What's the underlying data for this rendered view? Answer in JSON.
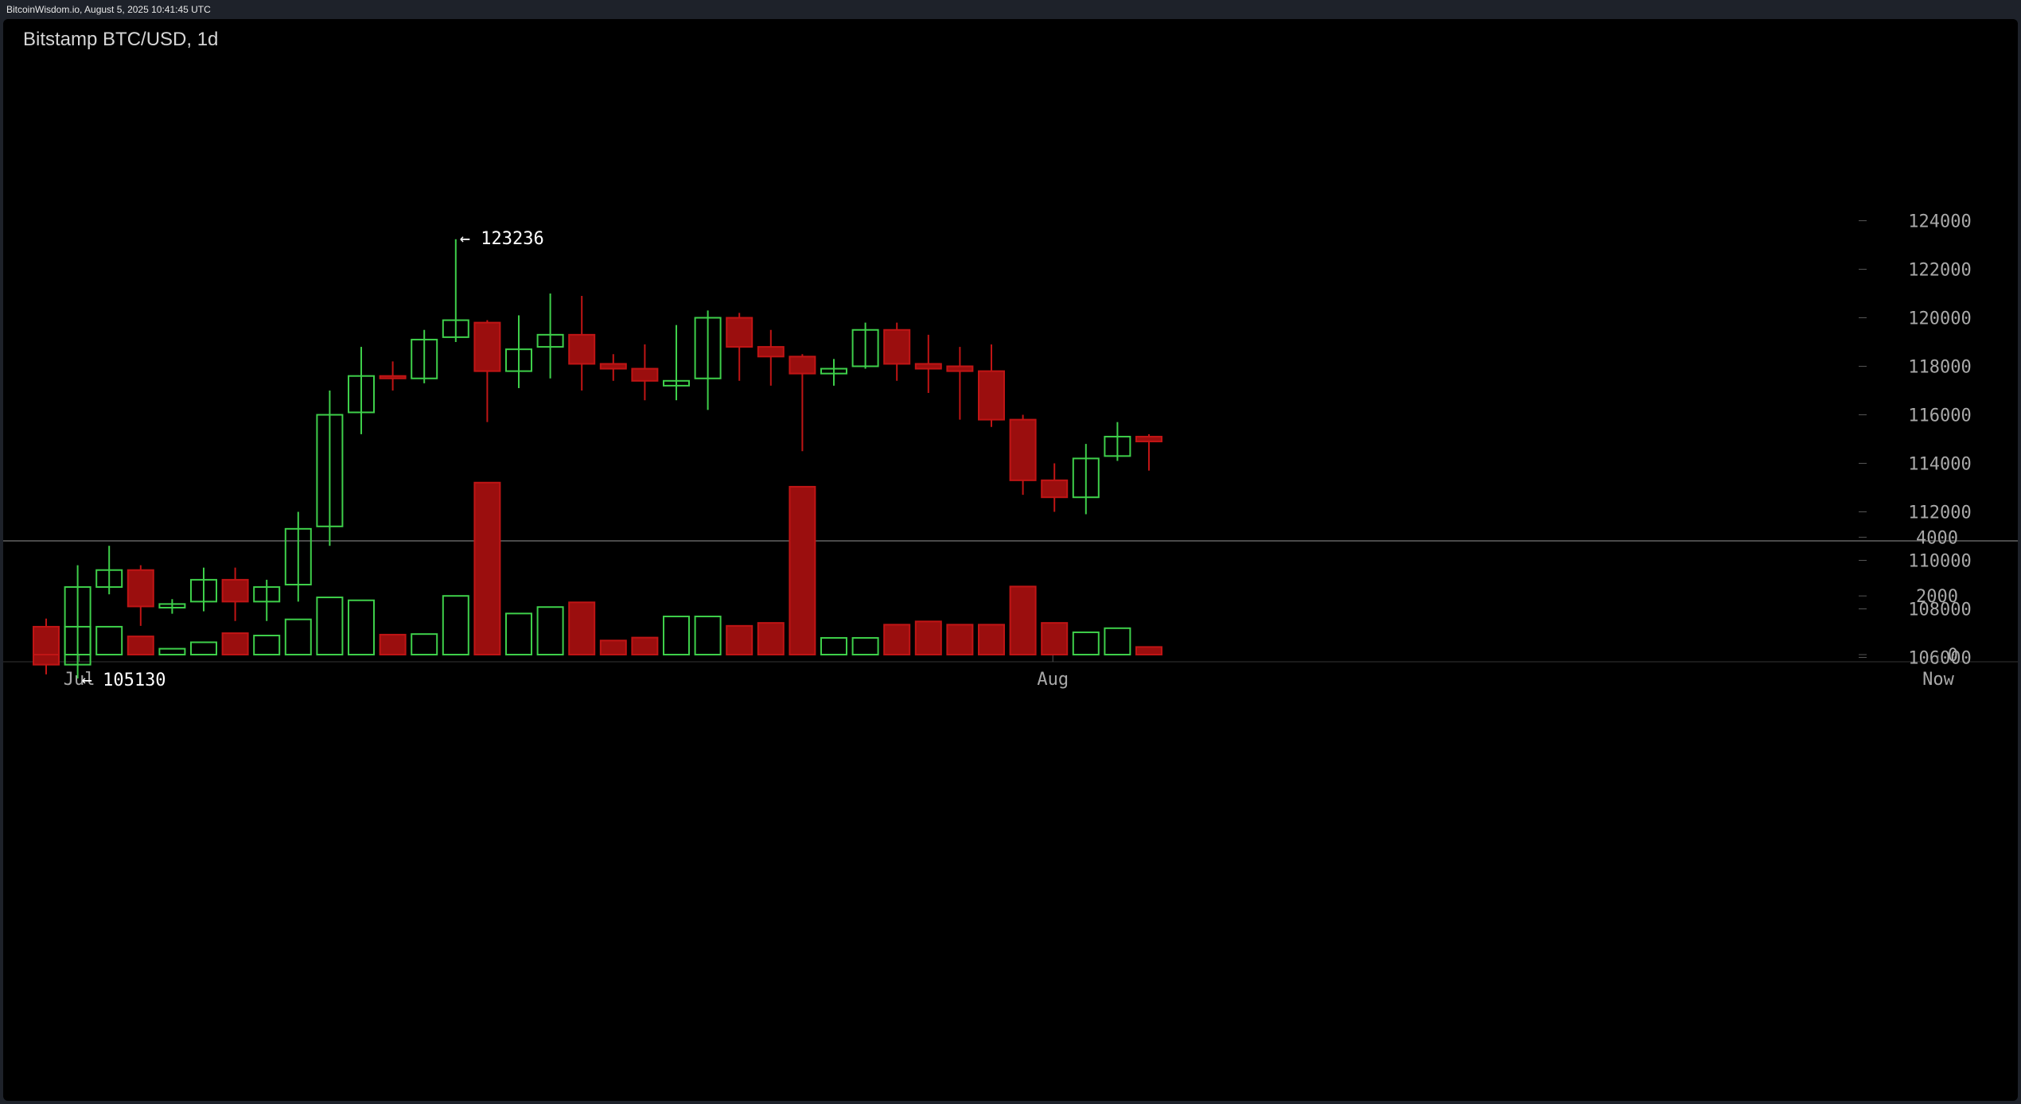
{
  "header": {
    "source": "BitcoinWisdom.io, August 5, 2025 10:41:45 UTC"
  },
  "chart_title": "Bitstamp BTC/USD, 1d",
  "colors": {
    "up": "#3ecf4a",
    "down": "#9b0e0e",
    "down_border": "#c01515",
    "background": "#000000",
    "axis_text": "#a8a8a8"
  },
  "chart_data": {
    "type": "candlestick",
    "title": "Bitstamp BTC/USD, 1d",
    "interval": "1d",
    "x_labels": [
      "Jul",
      "Aug",
      "Now"
    ],
    "price_axis": {
      "ticks": [
        106000,
        108000,
        110000,
        112000,
        114000,
        116000,
        118000,
        120000,
        122000,
        124000
      ],
      "range": [
        103600,
        125000
      ]
    },
    "volume_axis": {
      "ticks": [
        0,
        2000,
        4000
      ],
      "range": [
        0,
        5860
      ]
    },
    "annotations": [
      {
        "label": "← 123236",
        "value": 123236,
        "candle_index": 13,
        "anchor": "high"
      },
      {
        "label": "← 105130",
        "value": 105130,
        "candle_index": 1,
        "anchor": "low"
      }
    ],
    "candles": [
      {
        "o": 107200,
        "h": 107600,
        "l": 105300,
        "c": 105700,
        "v": 950
      },
      {
        "o": 105700,
        "h": 109800,
        "l": 105130,
        "c": 108900,
        "v": 950
      },
      {
        "o": 108900,
        "h": 110600,
        "l": 108600,
        "c": 109600,
        "v": 950
      },
      {
        "o": 109600,
        "h": 109800,
        "l": 107300,
        "c": 108100,
        "v": 620
      },
      {
        "o": 108050,
        "h": 108400,
        "l": 107800,
        "c": 108200,
        "v": 200
      },
      {
        "o": 108300,
        "h": 109700,
        "l": 107900,
        "c": 109200,
        "v": 420
      },
      {
        "o": 109200,
        "h": 109700,
        "l": 107500,
        "c": 108300,
        "v": 730
      },
      {
        "o": 108300,
        "h": 109200,
        "l": 107500,
        "c": 108900,
        "v": 650
      },
      {
        "o": 109000,
        "h": 112000,
        "l": 108300,
        "c": 111300,
        "v": 1200
      },
      {
        "o": 111400,
        "h": 117000,
        "l": 110600,
        "c": 116000,
        "v": 1950
      },
      {
        "o": 116100,
        "h": 118800,
        "l": 115200,
        "c": 117600,
        "v": 1850
      },
      {
        "o": 117600,
        "h": 118200,
        "l": 117000,
        "c": 117500,
        "v": 680
      },
      {
        "o": 117500,
        "h": 119500,
        "l": 117300,
        "c": 119100,
        "v": 700
      },
      {
        "o": 119200,
        "h": 123236,
        "l": 119000,
        "c": 119900,
        "v": 2000
      },
      {
        "o": 119800,
        "h": 119900,
        "l": 115700,
        "c": 117800,
        "v": 5860
      },
      {
        "o": 117800,
        "h": 120100,
        "l": 117100,
        "c": 118700,
        "v": 1400
      },
      {
        "o": 118800,
        "h": 121000,
        "l": 117500,
        "c": 119300,
        "v": 1620
      },
      {
        "o": 119300,
        "h": 120900,
        "l": 117000,
        "c": 118100,
        "v": 1780
      },
      {
        "o": 118100,
        "h": 118500,
        "l": 117400,
        "c": 117900,
        "v": 480
      },
      {
        "o": 117900,
        "h": 118900,
        "l": 116600,
        "c": 117400,
        "v": 580
      },
      {
        "o": 117200,
        "h": 119700,
        "l": 116600,
        "c": 117400,
        "v": 1300
      },
      {
        "o": 117500,
        "h": 120300,
        "l": 116200,
        "c": 120000,
        "v": 1300
      },
      {
        "o": 120000,
        "h": 120200,
        "l": 117400,
        "c": 118800,
        "v": 980
      },
      {
        "o": 118800,
        "h": 119500,
        "l": 117200,
        "c": 118400,
        "v": 1080
      },
      {
        "o": 118400,
        "h": 118500,
        "l": 114500,
        "c": 117700,
        "v": 5720
      },
      {
        "o": 117700,
        "h": 118300,
        "l": 117200,
        "c": 117900,
        "v": 570
      },
      {
        "o": 118000,
        "h": 119800,
        "l": 117900,
        "c": 119500,
        "v": 570
      },
      {
        "o": 119500,
        "h": 119800,
        "l": 117400,
        "c": 118100,
        "v": 1020
      },
      {
        "o": 118100,
        "h": 119300,
        "l": 116900,
        "c": 117900,
        "v": 1130
      },
      {
        "o": 118000,
        "h": 118800,
        "l": 115800,
        "c": 117800,
        "v": 1020
      },
      {
        "o": 117800,
        "h": 118900,
        "l": 115500,
        "c": 115800,
        "v": 1020
      },
      {
        "o": 115800,
        "h": 116000,
        "l": 112700,
        "c": 113300,
        "v": 2320
      },
      {
        "o": 113300,
        "h": 114000,
        "l": 112000,
        "c": 112600,
        "v": 1080
      },
      {
        "o": 112600,
        "h": 114800,
        "l": 111900,
        "c": 114200,
        "v": 760
      },
      {
        "o": 114300,
        "h": 115700,
        "l": 114100,
        "c": 115100,
        "v": 900
      },
      {
        "o": 115100,
        "h": 115200,
        "l": 113700,
        "c": 114900,
        "v": 260
      }
    ]
  }
}
